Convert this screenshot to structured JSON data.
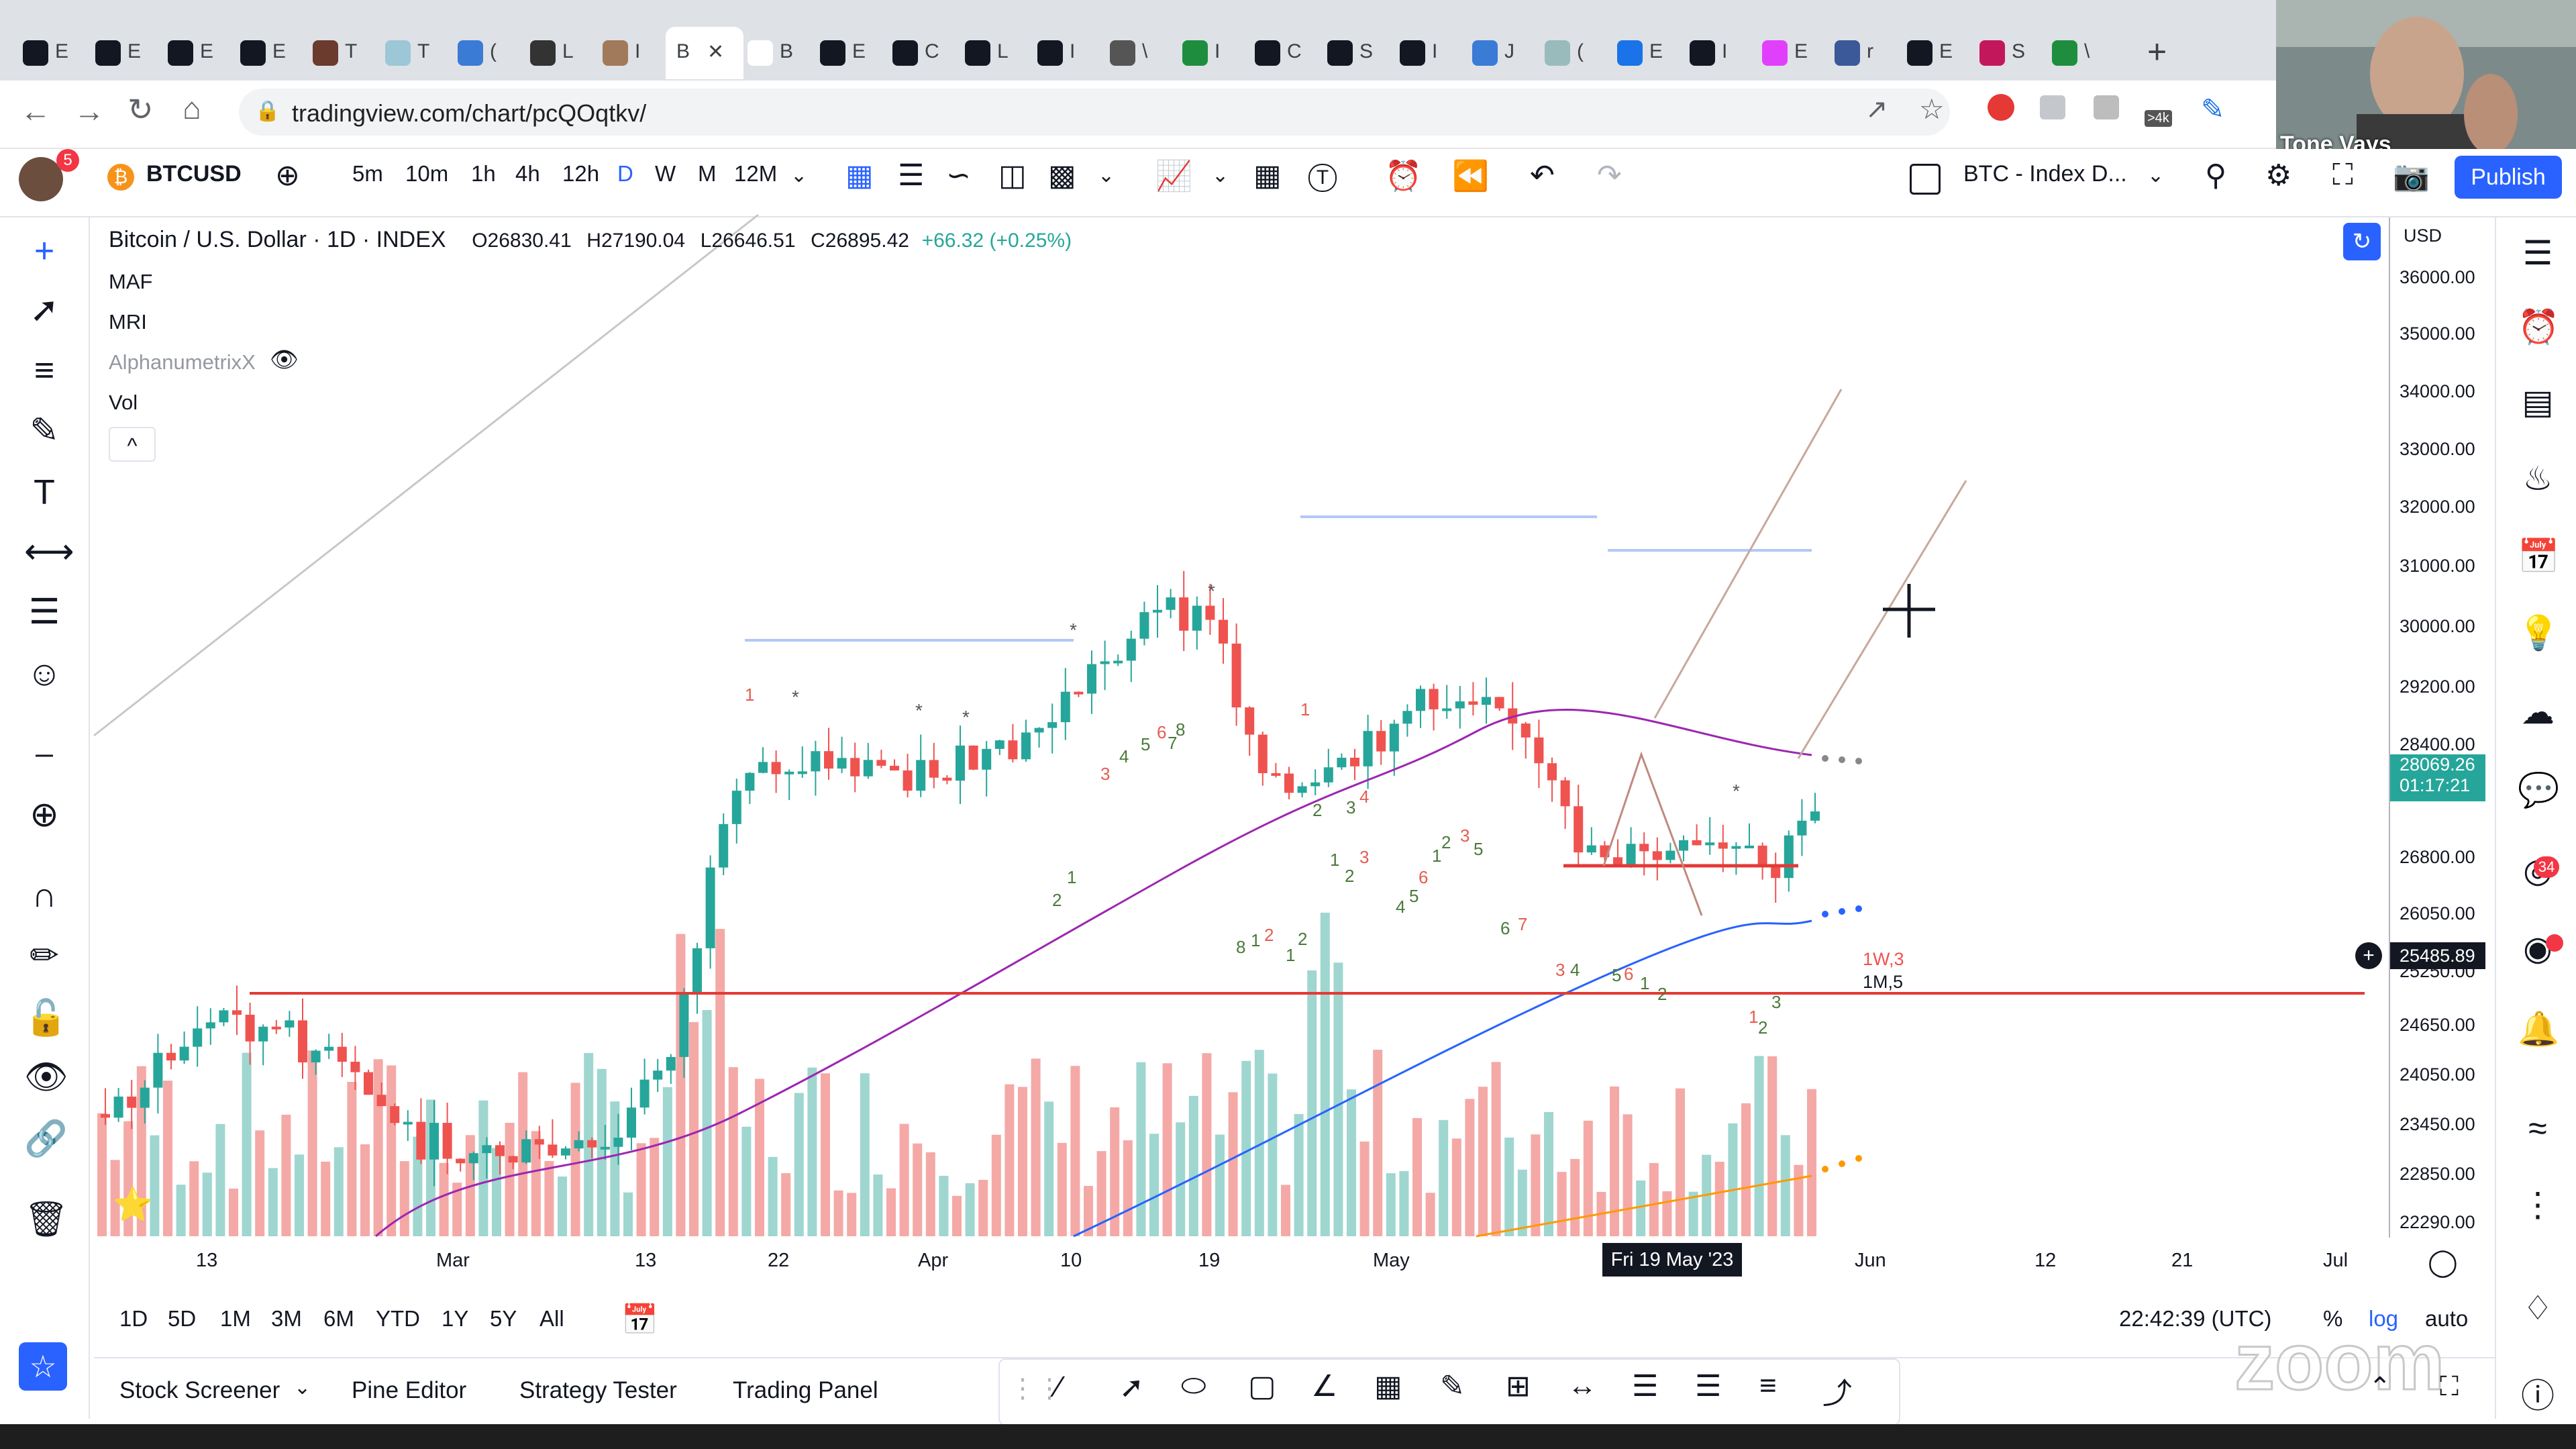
{
  "browser": {
    "url": "tradingview.com/chart/pcQOqtkv/",
    "tabs": [
      "E",
      "E",
      "E",
      "E",
      "T",
      "T",
      "(",
      "L",
      "I",
      "B",
      "E",
      "C",
      "L",
      "I",
      "\\",
      "I",
      "C",
      "S",
      "I",
      "J",
      "(",
      "E",
      "I",
      "E",
      "r",
      "E",
      "S",
      "\\"
    ],
    "active_tab": "B",
    "ext_badge": ">4k",
    "new_tab": "+"
  },
  "webcam": {
    "name": "Tone Vays"
  },
  "tv_header": {
    "avatar_badge": "5",
    "symbol": "BTCUSD",
    "timeframes": [
      "5m",
      "10m",
      "1h",
      "4h",
      "12h",
      "D",
      "W",
      "M",
      "12M"
    ],
    "active_timeframe": "D",
    "layout_name": "BTC - Index D...",
    "publish": "Publish",
    "tpl_letter": "T"
  },
  "legend": {
    "title": "Bitcoin / U.S. Dollar · 1D · INDEX",
    "open": "O26830.41",
    "high": "H27190.04",
    "low": "L26646.51",
    "close": "C26895.42",
    "change": "+66.32 (+0.25%)",
    "indicators": [
      "MAF",
      "MRI",
      "AlphanumetrixX",
      "Vol"
    ],
    "collapse": "^"
  },
  "price_axis": {
    "currency": "USD",
    "ticks": [
      "36000.00",
      "35000.00",
      "34000.00",
      "33000.00",
      "32000.00",
      "31000.00",
      "30000.00",
      "29200.00",
      "28400.00",
      "26800.00",
      "26050.00",
      "25250.00",
      "24650.00",
      "24050.00",
      "23450.00",
      "22850.00",
      "22290.00"
    ],
    "last_price": "28069.26",
    "countdown": "01:17:21",
    "crosshair_price": "25485.89"
  },
  "time_axis": {
    "ticks": [
      "13",
      "Mar",
      "13",
      "22",
      "Apr",
      "10",
      "19",
      "May",
      "Jun",
      "12",
      "21",
      "Jul"
    ],
    "crosshair_date": "Fri 19 May '23"
  },
  "chart_marks": {
    "labels_1w": "1W,3",
    "labels_1m": "1M,5",
    "numbers": [
      "1",
      "1",
      "2",
      "3",
      "4",
      "5",
      "6",
      "7",
      "8",
      "1",
      "2",
      "3",
      "4",
      "1",
      "2",
      "3",
      "4",
      "5",
      "6",
      "1",
      "2",
      "3",
      "5",
      "6",
      "7",
      "8",
      "1",
      "2",
      "1",
      "2",
      "3",
      "4",
      "5",
      "6",
      "1",
      "2",
      "1",
      "2",
      "3"
    ]
  },
  "bottom": {
    "ranges": [
      "1D",
      "5D",
      "1M",
      "3M",
      "6M",
      "YTD",
      "1Y",
      "5Y",
      "All"
    ],
    "time": "22:42:39 (UTC)",
    "pct": "%",
    "log": "log",
    "auto": "auto"
  },
  "panels": [
    "Stock Screener",
    "Pine Editor",
    "Strategy Tester",
    "Trading Panel"
  ],
  "right_badges": {
    "ideas": "34"
  },
  "watermark": "zoom",
  "colors": {
    "up": "#26a69a",
    "down": "#ef5350",
    "accent": "#2962ff",
    "ma_purple": "#9c27b0",
    "ma_blue": "#2962ff",
    "support": "#e53935",
    "ma_orange": "#ff9800"
  }
}
